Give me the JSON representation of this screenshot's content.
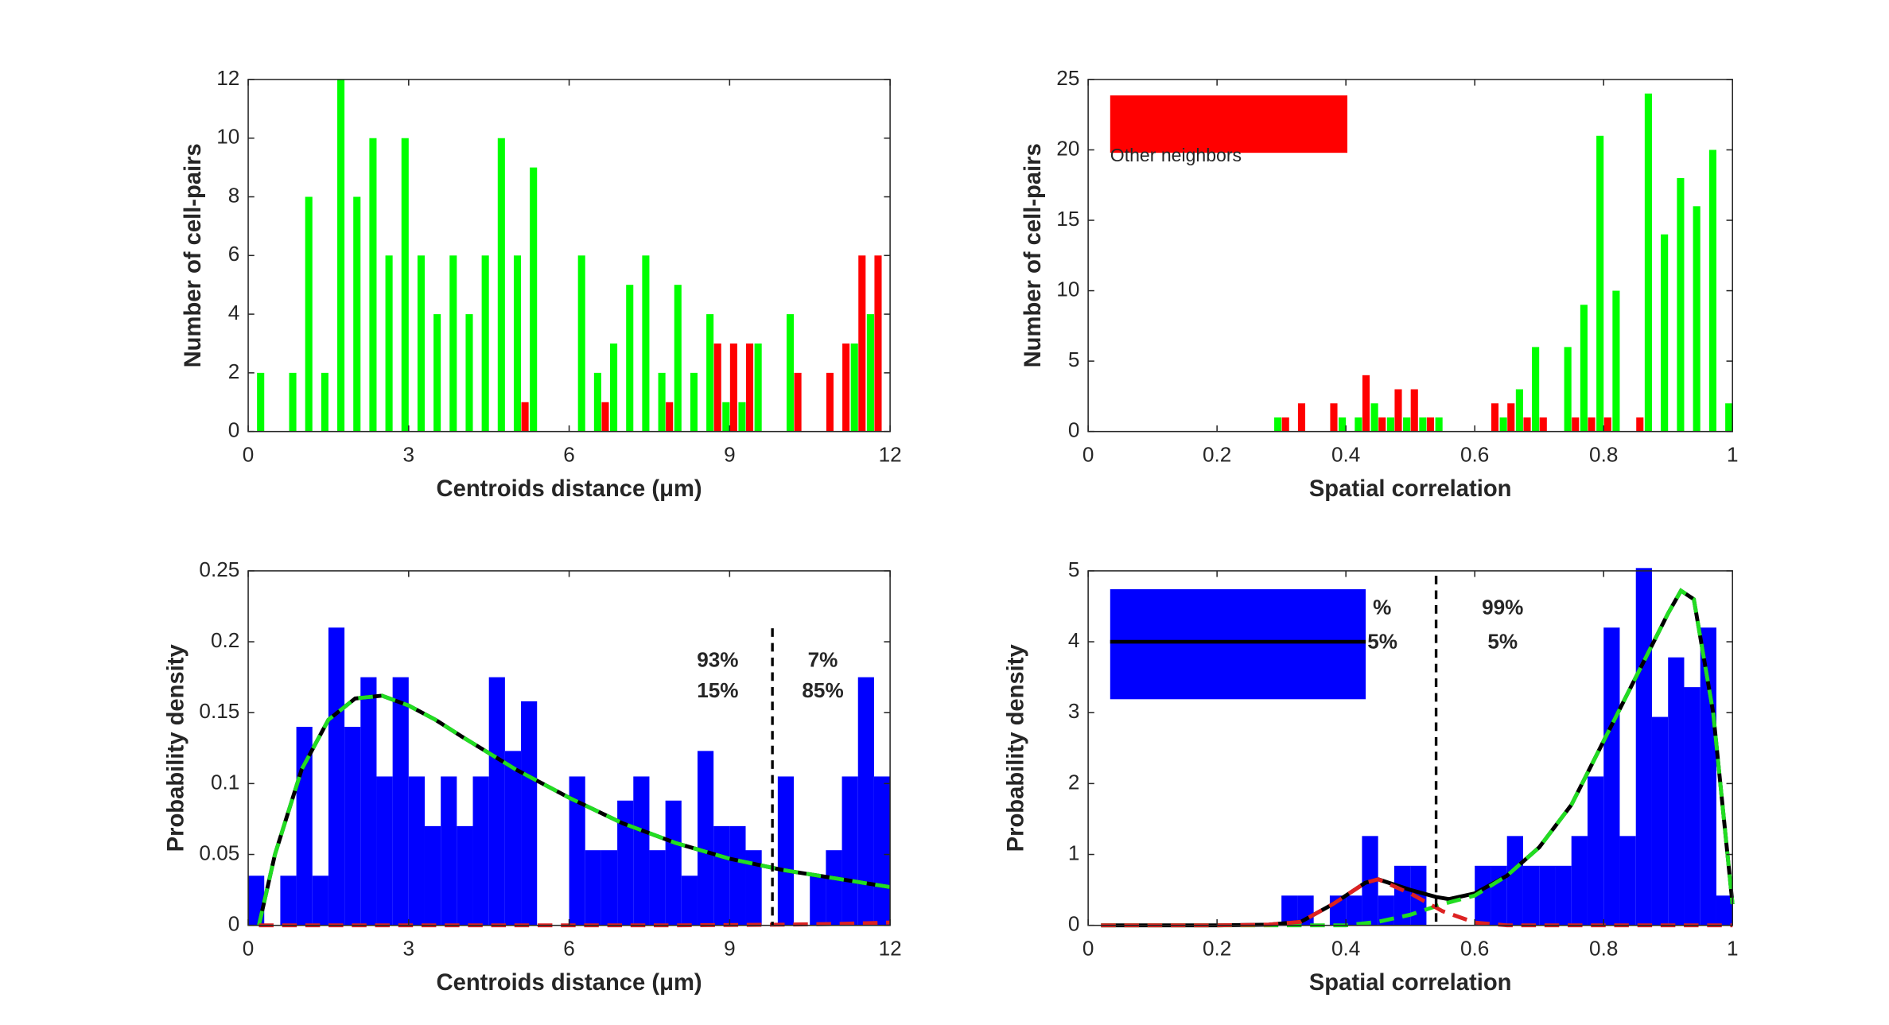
{
  "chart_data": [
    {
      "type": "bar",
      "xlabel": "Centroids distance (μm)",
      "ylabel": "Number of cell-pairs",
      "x": [
        0.15,
        0.45,
        0.75,
        1.05,
        1.35,
        1.65,
        1.95,
        2.25,
        2.55,
        2.85,
        3.15,
        3.45,
        3.75,
        4.05,
        4.35,
        4.65,
        4.95,
        5.25,
        5.55,
        5.85,
        6.15,
        6.45,
        6.75,
        7.05,
        7.35,
        7.65,
        7.95,
        8.25,
        8.55,
        8.85,
        9.15,
        9.45,
        9.75,
        10.05,
        10.35,
        10.65,
        10.95,
        11.25,
        11.55,
        11.85
      ],
      "series": [
        {
          "color": "#00ff00",
          "values": [
            2,
            0,
            2,
            8,
            2,
            12,
            8,
            10,
            6,
            10,
            6,
            4,
            6,
            4,
            6,
            10,
            6,
            9,
            0,
            0,
            6,
            2,
            3,
            5,
            6,
            2,
            5,
            2,
            4,
            1,
            1,
            3,
            0,
            4,
            0,
            0,
            0,
            3,
            4,
            0
          ]
        },
        {
          "color": "#ff0000",
          "values": [
            0,
            0,
            0,
            0,
            0,
            0,
            0,
            0,
            0,
            0,
            0,
            0,
            0,
            0,
            0,
            0,
            1,
            0,
            0,
            0,
            0,
            1,
            0,
            0,
            0,
            1,
            0,
            0,
            3,
            3,
            3,
            0,
            0,
            2,
            0,
            2,
            3,
            6,
            6,
            0
          ]
        }
      ],
      "xlim": [
        0,
        12
      ],
      "xticks": [
        0,
        3,
        6,
        9,
        12
      ],
      "ylim": [
        0,
        12
      ],
      "yticks": [
        0,
        2,
        4,
        6,
        8,
        10,
        12
      ]
    },
    {
      "type": "bar",
      "xlabel": "Spatial correlation",
      "ylabel": "Number of cell-pairs",
      "x": [
        0.0125,
        0.0375,
        0.0625,
        0.0875,
        0.1125,
        0.1375,
        0.1625,
        0.1875,
        0.2125,
        0.2375,
        0.2625,
        0.2875,
        0.3125,
        0.3375,
        0.3625,
        0.3875,
        0.4125,
        0.4375,
        0.4625,
        0.4875,
        0.5125,
        0.5375,
        0.5625,
        0.5875,
        0.6125,
        0.6375,
        0.6625,
        0.6875,
        0.7125,
        0.7375,
        0.7625,
        0.7875,
        0.8125,
        0.8375,
        0.8625,
        0.8875,
        0.9125,
        0.9375,
        0.9625,
        0.9875
      ],
      "series": [
        {
          "color": "#00ff00",
          "values": [
            0,
            0,
            0,
            0,
            0,
            0,
            0,
            0,
            0,
            0,
            0,
            1,
            0,
            0,
            0,
            1,
            1,
            2,
            1,
            1,
            1,
            1,
            0,
            0,
            0,
            1,
            3,
            6,
            0,
            6,
            9,
            21,
            10,
            0,
            24,
            14,
            18,
            16,
            20,
            2
          ]
        },
        {
          "name": "Other neighbors",
          "color": "#ff0000",
          "values": [
            0,
            0,
            0,
            0,
            0,
            0,
            0,
            0,
            0,
            0,
            0,
            1,
            2,
            0,
            2,
            0,
            4,
            1,
            3,
            3,
            1,
            0,
            0,
            0,
            2,
            2,
            1,
            1,
            0,
            1,
            1,
            1,
            0,
            1,
            0,
            0,
            0,
            0,
            0,
            0
          ]
        }
      ],
      "legend": "upper left",
      "xlim": [
        0,
        1
      ],
      "xticks": [
        0,
        0.2,
        0.4,
        0.6,
        0.8,
        1
      ],
      "ylim": [
        0,
        25
      ],
      "yticks": [
        0,
        5,
        10,
        15,
        20,
        25
      ]
    },
    {
      "type": "histogram",
      "xlabel": "Centroids distance (μm)",
      "ylabel": "Probability density",
      "bins": [
        0,
        0.3,
        0.6,
        0.9,
        1.2,
        1.5,
        1.8,
        2.1,
        2.4,
        2.7,
        3,
        3.3,
        3.6,
        3.9,
        4.2,
        4.5,
        4.8,
        5.1,
        5.4,
        5.7,
        6,
        6.3,
        6.6,
        6.9,
        7.2,
        7.5,
        7.8,
        8.1,
        8.4,
        8.7,
        9,
        9.3,
        9.6,
        9.9,
        10.2,
        10.5,
        10.8,
        11.1,
        11.4,
        11.7,
        12
      ],
      "values": [
        0.035,
        0,
        0.035,
        0.14,
        0.035,
        0.21,
        0.14,
        0.175,
        0.105,
        0.175,
        0.105,
        0.07,
        0.105,
        0.07,
        0.105,
        0.175,
        0.123,
        0.158,
        0,
        0,
        0.105,
        0.053,
        0.053,
        0.088,
        0.105,
        0.053,
        0.088,
        0.035,
        0.123,
        0.07,
        0.07,
        0.053,
        0,
        0.105,
        0,
        0.035,
        0.053,
        0.105,
        0.175,
        0.105
      ],
      "color": "#0000ff",
      "lines": [
        {
          "color": "#000000",
          "style": "solid",
          "x": [
            0.2,
            0.5,
            1,
            1.5,
            2,
            2.5,
            3,
            3.5,
            4,
            5,
            6,
            7,
            8,
            9,
            10,
            11,
            12
          ],
          "values": [
            0,
            0.05,
            0.11,
            0.145,
            0.16,
            0.162,
            0.155,
            0.145,
            0.133,
            0.11,
            0.09,
            0.072,
            0.058,
            0.047,
            0.039,
            0.033,
            0.027
          ]
        },
        {
          "color": "#22dd22",
          "style": "dashed",
          "x": [
            0.2,
            0.5,
            1,
            1.5,
            2,
            2.5,
            3,
            3.5,
            4,
            5,
            6,
            7,
            8,
            9,
            10,
            11,
            12
          ],
          "values": [
            0,
            0.05,
            0.11,
            0.145,
            0.16,
            0.162,
            0.155,
            0.145,
            0.133,
            0.11,
            0.09,
            0.072,
            0.058,
            0.047,
            0.039,
            0.033,
            0.027
          ]
        },
        {
          "color": "#dd2222",
          "style": "dashed",
          "x": [
            0.2,
            2,
            4,
            6,
            8,
            10,
            11,
            12
          ],
          "values": [
            0,
            0,
            0,
            0,
            0,
            0.0005,
            0.001,
            0.002
          ]
        }
      ],
      "threshold": 9.8,
      "annotations": [
        {
          "text": "93%",
          "color": "#00ee00"
        },
        {
          "text": "15%",
          "color": "#ff0000"
        },
        {
          "text": "7%",
          "color": "#00ee00"
        },
        {
          "text": "85%",
          "color": "#ff0000"
        }
      ],
      "xlim": [
        0,
        12
      ],
      "xticks": [
        0,
        3,
        6,
        9,
        12
      ],
      "ylim": [
        0,
        0.25
      ],
      "yticks": [
        0,
        0.05,
        0.1,
        0.15,
        0.2,
        0.25
      ]
    },
    {
      "type": "histogram",
      "xlabel": "Spatial correlation",
      "ylabel": "Probability density",
      "bins": [
        0,
        0.025,
        0.05,
        0.075,
        0.1,
        0.125,
        0.15,
        0.175,
        0.2,
        0.225,
        0.25,
        0.275,
        0.3,
        0.325,
        0.35,
        0.375,
        0.4,
        0.425,
        0.45,
        0.475,
        0.5,
        0.525,
        0.55,
        0.575,
        0.6,
        0.625,
        0.65,
        0.675,
        0.7,
        0.725,
        0.75,
        0.775,
        0.8,
        0.825,
        0.85,
        0.875,
        0.9,
        0.925,
        0.95,
        0.975,
        1
      ],
      "values": [
        0,
        0,
        0,
        0,
        0,
        0,
        0,
        0,
        0,
        0,
        0,
        0,
        0.42,
        0.42,
        0,
        0.42,
        0.42,
        1.26,
        0.42,
        0.84,
        0.84,
        0,
        0,
        0,
        0.84,
        0.84,
        1.26,
        0.84,
        0.84,
        0.84,
        1.26,
        2.1,
        4.2,
        1.26,
        5.04,
        2.94,
        3.78,
        3.36,
        4.2,
        0.42
      ],
      "color": "#0000ff",
      "lines": [
        {
          "color": "#000000",
          "style": "solid",
          "x": [
            0.02,
            0.2,
            0.28,
            0.33,
            0.38,
            0.43,
            0.45,
            0.5,
            0.54,
            0.56,
            0.6,
            0.65,
            0.7,
            0.75,
            0.8,
            0.85,
            0.9,
            0.92,
            0.94,
            0.97,
            1
          ],
          "values": [
            0,
            0,
            0.01,
            0.05,
            0.3,
            0.6,
            0.65,
            0.5,
            0.4,
            0.37,
            0.45,
            0.7,
            1.1,
            1.7,
            2.6,
            3.5,
            4.4,
            4.72,
            4.6,
            3,
            0.3
          ]
        },
        {
          "color": "#22dd22",
          "style": "dashed",
          "x": [
            0.02,
            0.2,
            0.4,
            0.45,
            0.5,
            0.55,
            0.6,
            0.65,
            0.7,
            0.75,
            0.8,
            0.85,
            0.9,
            0.92,
            0.94,
            0.97,
            1
          ],
          "values": [
            0,
            0,
            0,
            0.05,
            0.15,
            0.3,
            0.42,
            0.7,
            1.1,
            1.7,
            2.6,
            3.5,
            4.4,
            4.72,
            4.6,
            3,
            0.3
          ]
        },
        {
          "color": "#dd2222",
          "style": "dashed",
          "x": [
            0.02,
            0.2,
            0.28,
            0.33,
            0.38,
            0.43,
            0.45,
            0.5,
            0.55,
            0.6,
            0.65,
            0.8,
            1
          ],
          "values": [
            0,
            0,
            0.01,
            0.05,
            0.3,
            0.6,
            0.65,
            0.45,
            0.2,
            0.04,
            0,
            0,
            0
          ]
        }
      ],
      "threshold": 0.54,
      "annotations": [
        {
          "text": "%",
          "color": "#00ee00"
        },
        {
          "text": "5%",
          "color": "#ff0000"
        },
        {
          "text": "99%",
          "color": "#00ee00"
        },
        {
          "text": "5%",
          "color": "#ff0000"
        }
      ],
      "xlim": [
        0,
        1
      ],
      "xticks": [
        0,
        0.2,
        0.4,
        0.6,
        0.8,
        1
      ],
      "ylim": [
        0,
        5
      ],
      "yticks": [
        0,
        1,
        2,
        3,
        4,
        5
      ]
    }
  ]
}
